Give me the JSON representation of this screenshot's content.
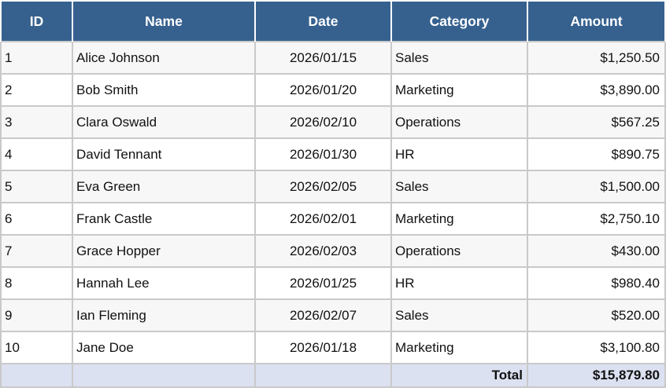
{
  "chart_data": {
    "type": "table",
    "columns": [
      "ID",
      "Name",
      "Date",
      "Category",
      "Amount"
    ],
    "column_align": [
      "left",
      "left",
      "center",
      "left",
      "right"
    ],
    "rows": [
      [
        "1",
        "Alice Johnson",
        "2026/01/15",
        "Sales",
        "$1,250.50"
      ],
      [
        "2",
        "Bob Smith",
        "2026/01/20",
        "Marketing",
        "$3,890.00"
      ],
      [
        "3",
        "Clara Oswald",
        "2026/02/10",
        "Operations",
        "$567.25"
      ],
      [
        "4",
        "David Tennant",
        "2026/01/30",
        "HR",
        "$890.75"
      ],
      [
        "5",
        "Eva Green",
        "2026/02/05",
        "Sales",
        "$1,500.00"
      ],
      [
        "6",
        "Frank Castle",
        "2026/02/01",
        "Marketing",
        "$2,750.10"
      ],
      [
        "7",
        "Grace Hopper",
        "2026/02/03",
        "Operations",
        "$430.00"
      ],
      [
        "8",
        "Hannah Lee",
        "2026/01/25",
        "HR",
        "$980.40"
      ],
      [
        "9",
        "Ian Fleming",
        "2026/02/07",
        "Sales",
        "$520.00"
      ],
      [
        "10",
        "Jane Doe",
        "2026/01/18",
        "Marketing",
        "$3,100.80"
      ]
    ],
    "total_label": "Total",
    "total_amount": "$15,879.80"
  },
  "colors": {
    "header_bg": "#36618f",
    "header_text": "#ffffff",
    "row_odd_bg": "#f7f7f7",
    "row_even_bg": "#ffffff",
    "total_row_bg": "#dce1f1",
    "border_color": "#c9c9c9",
    "text_color": "#111111"
  }
}
